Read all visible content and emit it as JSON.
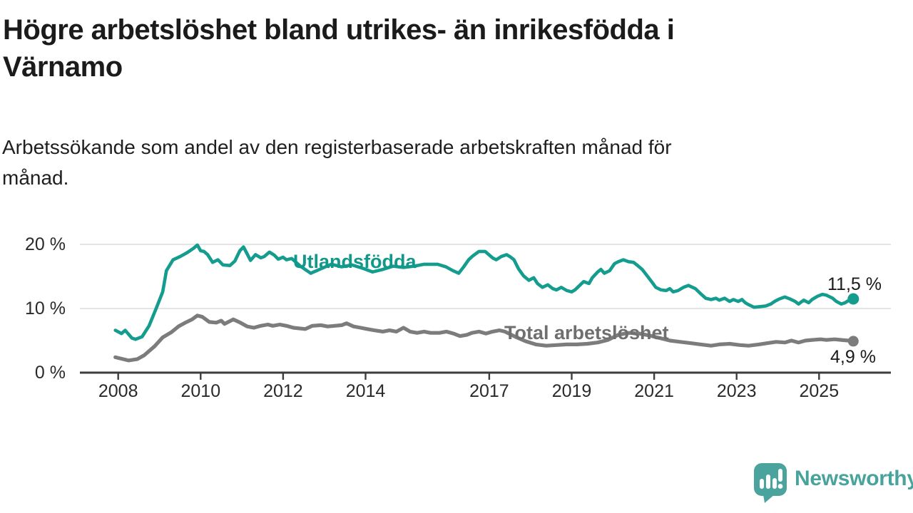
{
  "header": {
    "title_lines": [
      "Högre arbetslöshet bland utrikes- än inrikesfödda i",
      "Värnamo"
    ],
    "subtitle_lines": [
      "Arbetssökande som andel av den registerbaserade arbetskraften månad för",
      "månad."
    ]
  },
  "chart_data": {
    "type": "line",
    "unit": "%",
    "grid": "horizontal-only",
    "legend_position": "inline-on-line",
    "x_axis": {
      "ticks": [
        {
          "year": 2008,
          "label": "2008"
        },
        {
          "year": 2010,
          "label": "2010"
        },
        {
          "year": 2012,
          "label": "2012"
        },
        {
          "year": 2014,
          "label": "2014"
        },
        {
          "year": 2017,
          "label": "2017"
        },
        {
          "year": 2019,
          "label": "2019"
        },
        {
          "year": 2021,
          "label": "2021"
        },
        {
          "year": 2023,
          "label": "2023"
        },
        {
          "year": 2025,
          "label": "2025"
        }
      ],
      "range": [
        2007.9,
        2026.4
      ]
    },
    "y_axis": {
      "min": 0,
      "max": 21,
      "ticks": [
        {
          "value": 20,
          "label": "20 %"
        },
        {
          "value": 10,
          "label": "10 %"
        },
        {
          "value": 0,
          "label": "0 %"
        }
      ],
      "gridlines": [
        20,
        10
      ]
    },
    "series": [
      {
        "name": "Utlandsfödda",
        "color": "#149c8e",
        "end_label": "11,5 %",
        "end_value": 11.5,
        "points": [
          [
            2007.93,
            6.6
          ],
          [
            2008.08,
            6.1
          ],
          [
            2008.17,
            6.6
          ],
          [
            2008.33,
            5.4
          ],
          [
            2008.42,
            5.2
          ],
          [
            2008.58,
            5.6
          ],
          [
            2008.75,
            7.3
          ],
          [
            2008.92,
            10.0
          ],
          [
            2009.08,
            12.6
          ],
          [
            2009.17,
            15.9
          ],
          [
            2009.33,
            17.6
          ],
          [
            2009.5,
            18.1
          ],
          [
            2009.67,
            18.7
          ],
          [
            2009.83,
            19.4
          ],
          [
            2009.92,
            19.9
          ],
          [
            2010.0,
            19.0
          ],
          [
            2010.08,
            18.9
          ],
          [
            2010.17,
            18.4
          ],
          [
            2010.29,
            17.2
          ],
          [
            2010.42,
            17.6
          ],
          [
            2010.54,
            16.8
          ],
          [
            2010.71,
            16.7
          ],
          [
            2010.83,
            17.4
          ],
          [
            2010.95,
            19.0
          ],
          [
            2011.04,
            19.6
          ],
          [
            2011.13,
            18.5
          ],
          [
            2011.21,
            17.5
          ],
          [
            2011.33,
            18.4
          ],
          [
            2011.46,
            17.9
          ],
          [
            2011.54,
            18.1
          ],
          [
            2011.67,
            18.8
          ],
          [
            2011.79,
            18.3
          ],
          [
            2011.88,
            17.7
          ],
          [
            2012.0,
            18.0
          ],
          [
            2012.08,
            17.6
          ],
          [
            2012.21,
            17.8
          ],
          [
            2012.42,
            16.6
          ],
          [
            2012.67,
            15.5
          ],
          [
            2012.92,
            16.2
          ],
          [
            2013.17,
            16.9
          ],
          [
            2013.42,
            16.5
          ],
          [
            2013.67,
            16.8
          ],
          [
            2013.92,
            16.3
          ],
          [
            2014.17,
            15.7
          ],
          [
            2014.42,
            16.1
          ],
          [
            2014.67,
            16.6
          ],
          [
            2014.92,
            16.4
          ],
          [
            2015.17,
            16.6
          ],
          [
            2015.42,
            16.9
          ],
          [
            2015.75,
            16.9
          ],
          [
            2015.95,
            16.5
          ],
          [
            2016.12,
            15.9
          ],
          [
            2016.26,
            15.5
          ],
          [
            2016.38,
            16.5
          ],
          [
            2016.5,
            17.6
          ],
          [
            2016.6,
            18.2
          ],
          [
            2016.75,
            18.9
          ],
          [
            2016.9,
            18.9
          ],
          [
            2017.08,
            17.9
          ],
          [
            2017.17,
            17.6
          ],
          [
            2017.29,
            18.1
          ],
          [
            2017.42,
            18.4
          ],
          [
            2017.5,
            18.1
          ],
          [
            2017.6,
            17.6
          ],
          [
            2017.71,
            16.2
          ],
          [
            2017.83,
            15.1
          ],
          [
            2017.96,
            14.4
          ],
          [
            2018.08,
            14.8
          ],
          [
            2018.17,
            13.9
          ],
          [
            2018.29,
            13.3
          ],
          [
            2018.42,
            13.7
          ],
          [
            2018.54,
            13.1
          ],
          [
            2018.63,
            12.9
          ],
          [
            2018.75,
            13.3
          ],
          [
            2018.88,
            12.8
          ],
          [
            2019.0,
            12.6
          ],
          [
            2019.08,
            12.9
          ],
          [
            2019.21,
            13.7
          ],
          [
            2019.29,
            14.2
          ],
          [
            2019.42,
            13.9
          ],
          [
            2019.5,
            14.8
          ],
          [
            2019.63,
            15.7
          ],
          [
            2019.71,
            16.1
          ],
          [
            2019.79,
            15.5
          ],
          [
            2019.92,
            15.9
          ],
          [
            2020.04,
            17.0
          ],
          [
            2020.13,
            17.3
          ],
          [
            2020.25,
            17.6
          ],
          [
            2020.38,
            17.3
          ],
          [
            2020.5,
            17.2
          ],
          [
            2020.58,
            16.8
          ],
          [
            2020.71,
            16.1
          ],
          [
            2020.83,
            15.1
          ],
          [
            2020.96,
            14.0
          ],
          [
            2021.04,
            13.3
          ],
          [
            2021.17,
            12.9
          ],
          [
            2021.29,
            12.8
          ],
          [
            2021.38,
            13.1
          ],
          [
            2021.46,
            12.6
          ],
          [
            2021.58,
            12.8
          ],
          [
            2021.71,
            13.3
          ],
          [
            2021.83,
            13.6
          ],
          [
            2022.0,
            13.1
          ],
          [
            2022.13,
            12.3
          ],
          [
            2022.25,
            11.6
          ],
          [
            2022.38,
            11.4
          ],
          [
            2022.5,
            11.6
          ],
          [
            2022.58,
            11.3
          ],
          [
            2022.71,
            11.6
          ],
          [
            2022.83,
            11.1
          ],
          [
            2022.92,
            11.4
          ],
          [
            2023.04,
            11.1
          ],
          [
            2023.13,
            11.4
          ],
          [
            2023.21,
            10.9
          ],
          [
            2023.29,
            10.6
          ],
          [
            2023.42,
            10.2
          ],
          [
            2023.58,
            10.3
          ],
          [
            2023.71,
            10.4
          ],
          [
            2023.83,
            10.7
          ],
          [
            2023.92,
            11.1
          ],
          [
            2024.04,
            11.5
          ],
          [
            2024.17,
            11.8
          ],
          [
            2024.29,
            11.5
          ],
          [
            2024.42,
            11.1
          ],
          [
            2024.5,
            10.7
          ],
          [
            2024.63,
            11.3
          ],
          [
            2024.75,
            10.9
          ],
          [
            2024.83,
            11.4
          ],
          [
            2024.96,
            11.9
          ],
          [
            2025.08,
            12.2
          ],
          [
            2025.17,
            12.1
          ],
          [
            2025.33,
            11.6
          ],
          [
            2025.42,
            11.1
          ],
          [
            2025.54,
            10.7
          ],
          [
            2025.63,
            10.9
          ],
          [
            2025.75,
            11.4
          ],
          [
            2025.83,
            11.5
          ]
        ]
      },
      {
        "name": "Total arbetslöshet",
        "color": "#7c7c7c",
        "end_label": "4,9 %",
        "end_value": 4.9,
        "points": [
          [
            2007.93,
            2.4
          ],
          [
            2008.25,
            1.9
          ],
          [
            2008.46,
            2.1
          ],
          [
            2008.63,
            2.7
          ],
          [
            2008.88,
            4.1
          ],
          [
            2009.08,
            5.5
          ],
          [
            2009.29,
            6.3
          ],
          [
            2009.46,
            7.2
          ],
          [
            2009.63,
            7.8
          ],
          [
            2009.79,
            8.3
          ],
          [
            2009.92,
            8.9
          ],
          [
            2010.04,
            8.7
          ],
          [
            2010.21,
            7.9
          ],
          [
            2010.38,
            7.8
          ],
          [
            2010.5,
            8.1
          ],
          [
            2010.58,
            7.6
          ],
          [
            2010.79,
            8.3
          ],
          [
            2010.96,
            7.8
          ],
          [
            2011.13,
            7.2
          ],
          [
            2011.29,
            7.0
          ],
          [
            2011.46,
            7.3
          ],
          [
            2011.63,
            7.5
          ],
          [
            2011.75,
            7.3
          ],
          [
            2011.92,
            7.5
          ],
          [
            2012.08,
            7.3
          ],
          [
            2012.25,
            7.0
          ],
          [
            2012.54,
            6.8
          ],
          [
            2012.71,
            7.3
          ],
          [
            2012.92,
            7.4
          ],
          [
            2013.08,
            7.2
          ],
          [
            2013.25,
            7.3
          ],
          [
            2013.42,
            7.4
          ],
          [
            2013.54,
            7.7
          ],
          [
            2013.71,
            7.2
          ],
          [
            2013.88,
            7.0
          ],
          [
            2014.04,
            6.8
          ],
          [
            2014.21,
            6.6
          ],
          [
            2014.42,
            6.4
          ],
          [
            2014.58,
            6.6
          ],
          [
            2014.75,
            6.4
          ],
          [
            2014.92,
            7.0
          ],
          [
            2015.08,
            6.4
          ],
          [
            2015.25,
            6.2
          ],
          [
            2015.42,
            6.4
          ],
          [
            2015.58,
            6.2
          ],
          [
            2015.79,
            6.2
          ],
          [
            2015.96,
            6.4
          ],
          [
            2016.13,
            6.1
          ],
          [
            2016.29,
            5.7
          ],
          [
            2016.46,
            5.9
          ],
          [
            2016.58,
            6.2
          ],
          [
            2016.75,
            6.4
          ],
          [
            2016.92,
            6.1
          ],
          [
            2017.08,
            6.4
          ],
          [
            2017.25,
            6.6
          ],
          [
            2017.38,
            6.4
          ],
          [
            2017.63,
            5.6
          ],
          [
            2017.88,
            4.9
          ],
          [
            2018.13,
            4.4
          ],
          [
            2018.38,
            4.2
          ],
          [
            2018.63,
            4.3
          ],
          [
            2018.88,
            4.4
          ],
          [
            2019.13,
            4.4
          ],
          [
            2019.38,
            4.5
          ],
          [
            2019.63,
            4.7
          ],
          [
            2019.88,
            5.1
          ],
          [
            2020.13,
            5.9
          ],
          [
            2020.38,
            6.2
          ],
          [
            2020.63,
            6.1
          ],
          [
            2020.88,
            5.8
          ],
          [
            2021.13,
            5.4
          ],
          [
            2021.38,
            5.0
          ],
          [
            2021.63,
            4.8
          ],
          [
            2021.88,
            4.6
          ],
          [
            2022.13,
            4.4
          ],
          [
            2022.38,
            4.2
          ],
          [
            2022.58,
            4.4
          ],
          [
            2022.83,
            4.5
          ],
          [
            2023.08,
            4.3
          ],
          [
            2023.29,
            4.2
          ],
          [
            2023.54,
            4.4
          ],
          [
            2023.75,
            4.6
          ],
          [
            2023.96,
            4.8
          ],
          [
            2024.17,
            4.7
          ],
          [
            2024.33,
            5.0
          ],
          [
            2024.5,
            4.7
          ],
          [
            2024.67,
            5.0
          ],
          [
            2024.83,
            5.1
          ],
          [
            2025.04,
            5.2
          ],
          [
            2025.17,
            5.1
          ],
          [
            2025.38,
            5.2
          ],
          [
            2025.54,
            5.1
          ],
          [
            2025.71,
            5.0
          ],
          [
            2025.83,
            4.9
          ]
        ]
      }
    ],
    "colors": {
      "axis": "#3d3d3d",
      "gridline": "#dcdcdc",
      "tick_text": "#2a2a2a"
    }
  },
  "branding": {
    "logo_text": "Newsworthy",
    "logo_color": "#48a39c"
  }
}
